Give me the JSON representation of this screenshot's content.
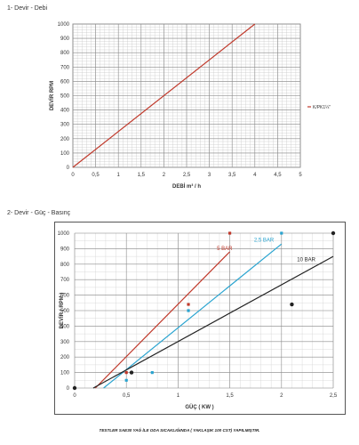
{
  "sections": {
    "s1_title": "1- Devir - Debi",
    "s2_title": "2- Devir - Güç - Basınç"
  },
  "footnote": "TESTLER SAE30 YAĞ İLE ODA SICAKLIĞINDA ( YAKLAŞIK 100 CST) YAPILMIŞTIR.",
  "chart_data": [
    {
      "type": "line",
      "xlabel": "DEBİ m³ / h",
      "ylabel": "DEVİR RPM",
      "xlim": [
        0,
        5
      ],
      "ylim": [
        0,
        1000
      ],
      "x_ticks": [
        "0",
        "0,5",
        "1",
        "1,5",
        "2",
        "2,5",
        "3",
        "3,5",
        "4",
        "4,5",
        "5"
      ],
      "y_ticks": [
        "0",
        "100",
        "200",
        "300",
        "400",
        "500",
        "600",
        "700",
        "800",
        "900",
        "1000"
      ],
      "grid": true,
      "legend": "right",
      "series": [
        {
          "name": "K/PK1¼\"",
          "color": "#c0392b",
          "x": [
            0,
            4
          ],
          "y": [
            0,
            1000
          ]
        }
      ]
    },
    {
      "type": "line",
      "xlabel": "GÜÇ ( KW )",
      "ylabel": "DEVİR ( RPM )",
      "xlim": [
        0,
        2.5
      ],
      "ylim": [
        0,
        1000
      ],
      "x_ticks": [
        "0",
        "0,5",
        "1",
        "1,5",
        "2",
        "2,5"
      ],
      "y_ticks": [
        "0",
        "100",
        "200",
        "300",
        "400",
        "500",
        "600",
        "700",
        "800",
        "900",
        "1000"
      ],
      "grid": true,
      "series": [
        {
          "name": "5 BAR",
          "color": "#c0392b",
          "x": [
            0.2,
            1.5
          ],
          "y": [
            0,
            880
          ],
          "points": [
            [
              0.5,
              100
            ],
            [
              1.1,
              540
            ],
            [
              1.5,
              1000
            ]
          ]
        },
        {
          "name": "2,5 BAR",
          "color": "#2aa4d0",
          "x": [
            0.28,
            2.0
          ],
          "y": [
            0,
            930
          ],
          "points": [
            [
              0.5,
              50
            ],
            [
              0.75,
              100
            ],
            [
              1.1,
              500
            ],
            [
              2.0,
              1000
            ]
          ]
        },
        {
          "name": "10 BAR",
          "color": "#222222",
          "x": [
            0.18,
            2.5
          ],
          "y": [
            0,
            850
          ],
          "points": [
            [
              0,
              0
            ],
            [
              0.55,
              100
            ],
            [
              2.1,
              540
            ],
            [
              2.5,
              1000
            ]
          ]
        }
      ]
    }
  ]
}
